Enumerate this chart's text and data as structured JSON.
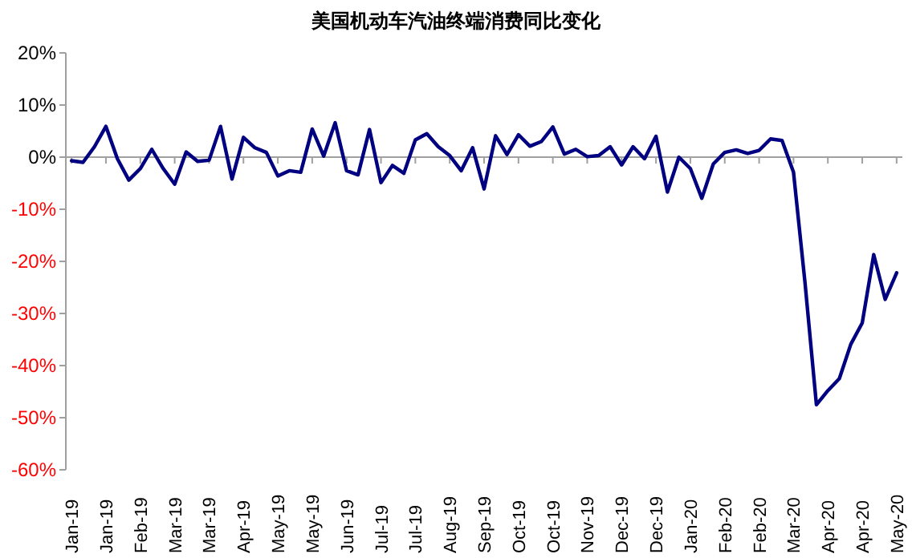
{
  "chart_data": {
    "type": "line",
    "title": "美国机动车汽油终端消费同比变化",
    "categories": [
      "Jan-19",
      null,
      null,
      "Jan-19",
      null,
      null,
      "Feb-19",
      null,
      null,
      "Mar-19",
      null,
      null,
      "Mar-19",
      null,
      null,
      "Apr-19",
      null,
      null,
      "May-19",
      null,
      null,
      "May-19",
      null,
      null,
      "Jun-19",
      null,
      null,
      "Jul-19",
      null,
      null,
      "Jul-19",
      null,
      null,
      "Aug-19",
      null,
      null,
      "Sep-19",
      null,
      null,
      "Oct-19",
      null,
      null,
      "Oct-19",
      null,
      null,
      "Nov-19",
      null,
      null,
      "Dec-19",
      null,
      null,
      "Dec-19",
      null,
      null,
      "Jan-20",
      null,
      null,
      "Feb-20",
      null,
      null,
      "Feb-20",
      null,
      null,
      "Mar-20",
      null,
      null,
      "Apr-20",
      null,
      null,
      "Apr-20",
      null,
      null,
      "May-20"
    ],
    "series": [
      {
        "color": "#000080",
        "values": [
          -0.7,
          -1.0,
          2.0,
          5.9,
          -0.3,
          -4.4,
          -2.2,
          1.5,
          -2.2,
          -5.2,
          1.0,
          -0.8,
          -0.6,
          5.9,
          -4.2,
          3.8,
          1.8,
          0.9,
          -3.6,
          -2.6,
          -2.9,
          5.4,
          0.2,
          6.6,
          -2.6,
          -3.4,
          5.3,
          -4.9,
          -1.6,
          -3.1,
          3.3,
          4.5,
          2.0,
          0.3,
          -2.6,
          1.8,
          -6.1,
          4.1,
          0.5,
          4.3,
          2.1,
          3.0,
          5.8,
          0.6,
          1.5,
          0.1,
          0.3,
          2.0,
          -1.5,
          2.0,
          -0.3,
          4.0,
          -6.7,
          0,
          -2.2,
          -7.9,
          -1.3,
          0.9,
          1.4,
          0.7,
          1.3,
          3.5,
          3.2,
          -2.9,
          -24,
          -47.5,
          -44.8,
          -42.5,
          -35.9,
          -31.8,
          -18.7,
          -27.3,
          -22.2
        ]
      }
    ],
    "ylim": [
      -60,
      20
    ],
    "yticks": [
      {
        "value": 20,
        "label": "20%"
      },
      {
        "value": 10,
        "label": "10%"
      },
      {
        "value": 0,
        "label": "0%"
      },
      {
        "value": -10,
        "label": "-10%"
      },
      {
        "value": -20,
        "label": "-20%"
      },
      {
        "value": -30,
        "label": "-30%"
      },
      {
        "value": -40,
        "label": "-40%"
      },
      {
        "value": -50,
        "label": "-50%"
      },
      {
        "value": -60,
        "label": "-60%"
      }
    ],
    "marker": "none",
    "line_style": "solid"
  }
}
